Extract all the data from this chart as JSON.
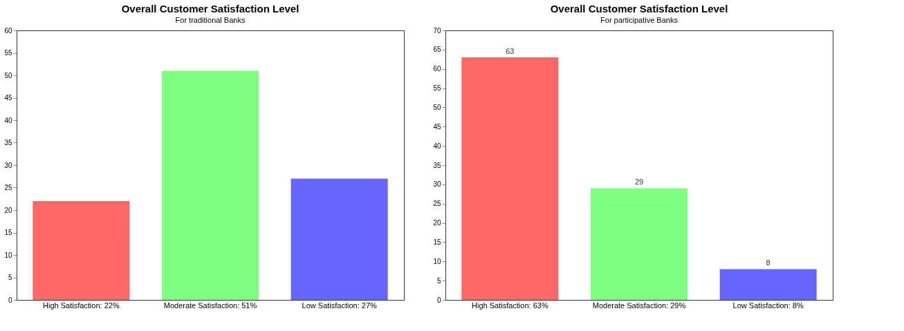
{
  "chart_data": [
    {
      "type": "bar",
      "title": "Overall Customer Satisfaction Level",
      "subtitle": "For traditional Banks",
      "categories": [
        "High Satisfaction: 22%",
        "Moderate Satisfaction: 51%",
        "Low Satisfaction: 27%"
      ],
      "values": [
        22,
        51,
        27
      ],
      "colors": [
        "#ff6666",
        "#80ff80",
        "#6666ff"
      ],
      "ylim": [
        0,
        60
      ],
      "yticks": [
        0,
        5,
        10,
        15,
        20,
        25,
        30,
        35,
        40,
        45,
        50,
        55,
        60
      ],
      "grid": false
    },
    {
      "type": "bar",
      "title": "Overall Customer Satisfaction Level",
      "subtitle": "For participative Banks",
      "categories": [
        "High Satisfaction: 63%",
        "Moderate Satisfaction: 29%",
        "Low Satisfaction: 8%"
      ],
      "values": [
        63,
        29,
        8
      ],
      "colors": [
        "#ff6666",
        "#80ff80",
        "#6666ff"
      ],
      "ylim": [
        0,
        70
      ],
      "yticks": [
        0,
        5,
        10,
        15,
        20,
        25,
        30,
        35,
        40,
        45,
        50,
        55,
        60,
        65,
        70
      ],
      "grid": false,
      "data_labels": true
    }
  ]
}
